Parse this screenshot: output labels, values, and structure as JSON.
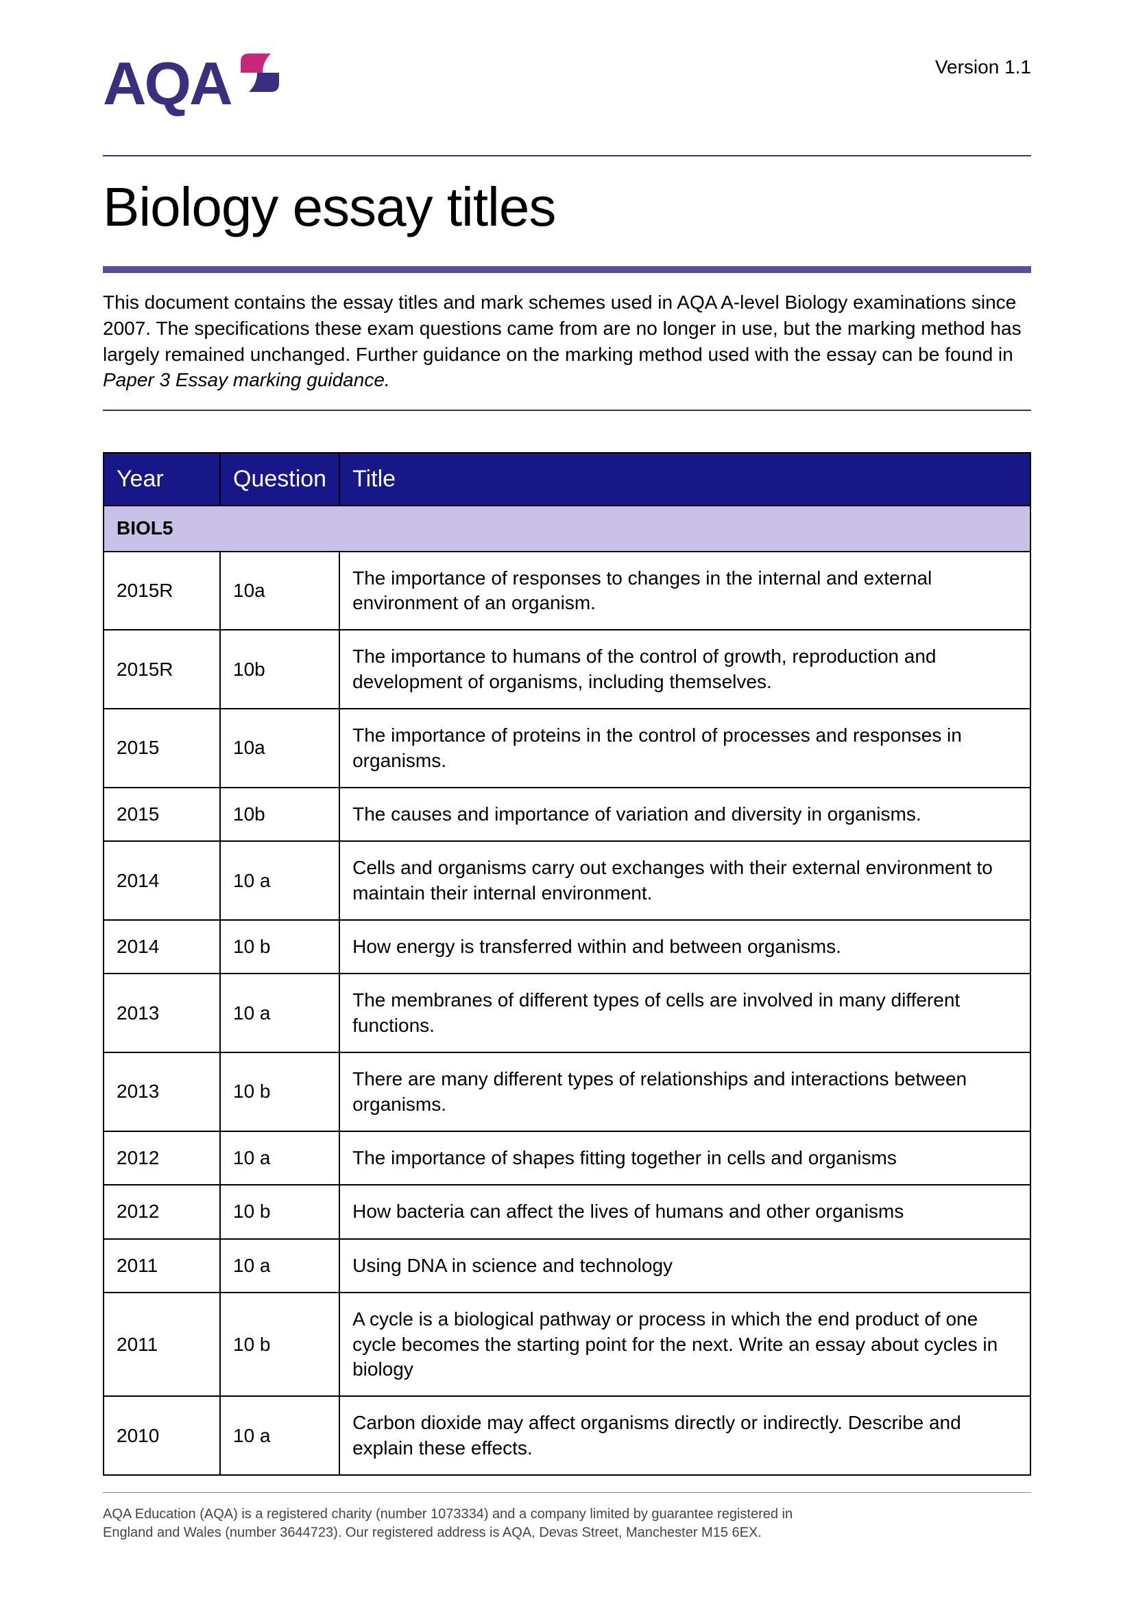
{
  "header": {
    "logo_text": "AQA",
    "version": "Version 1.1"
  },
  "title": "Biology essay titles",
  "intro_text_1": "This document contains the essay titles and mark schemes used in AQA A-level Biology examinations since 2007. The specifications these exam questions came from are no longer in use, but the marking method has largely remained unchanged. Further guidance on the marking method used with the essay can be found in ",
  "intro_text_italic": "Paper 3 Essay marking guidance.",
  "table": {
    "columns": [
      "Year",
      "Question",
      "Title"
    ],
    "section_label": "BIOL5",
    "col_widths": {
      "year": 170,
      "question": 170
    },
    "header_bg": "#17178a",
    "header_fg": "#ffffff",
    "section_bg": "#c9c1e6",
    "border_color": "#000000",
    "rows": [
      {
        "year": "2015R",
        "question": "10a",
        "title": "The importance of responses to changes in the internal and external environment of an organism."
      },
      {
        "year": "2015R",
        "question": "10b",
        "title": "The importance to humans of the control of growth, reproduction and development of organisms, including themselves."
      },
      {
        "year": "2015",
        "question": "10a",
        "title": "The importance of proteins in the control of processes and responses in organisms."
      },
      {
        "year": "2015",
        "question": "10b",
        "title": "The causes and importance of variation and diversity in organisms."
      },
      {
        "year": "2014",
        "question": "10 a",
        "title": "Cells and organisms carry out exchanges with their external environment to maintain their internal environment."
      },
      {
        "year": "2014",
        "question": "10 b",
        "title": "How energy is transferred within and between organisms."
      },
      {
        "year": "2013",
        "question": "10 a",
        "title": "The membranes of different types of cells are involved in many different functions."
      },
      {
        "year": "2013",
        "question": "10 b",
        "title": "There are many different types of relationships and interactions between organisms."
      },
      {
        "year": "2012",
        "question": "10 a",
        "title": "The importance of shapes fitting together in cells and organisms"
      },
      {
        "year": "2012",
        "question": "10 b",
        "title": "How bacteria can affect the lives of humans and other organisms"
      },
      {
        "year": "2011",
        "question": "10 a",
        "title": "Using DNA in science and technology"
      },
      {
        "year": "2011",
        "question": "10 b",
        "title": "A cycle is a biological pathway or process in which the end product of one cycle becomes the starting point for the next. Write an essay about cycles in biology"
      },
      {
        "year": "2010",
        "question": "10 a",
        "title": "Carbon dioxide may affect organisms directly or indirectly. Describe and explain these effects."
      }
    ]
  },
  "footer": {
    "line1": "AQA Education (AQA) is a registered charity (number 1073334) and a company limited by guarantee registered in",
    "line2": "England and Wales (number 3644723). Our registered address is AQA, Devas Street, Manchester M15 6EX."
  },
  "colors": {
    "brand_purple": "#3b2e7e",
    "brand_purple_light": "#5b4a9e",
    "logo_magenta": "#c9257a"
  }
}
